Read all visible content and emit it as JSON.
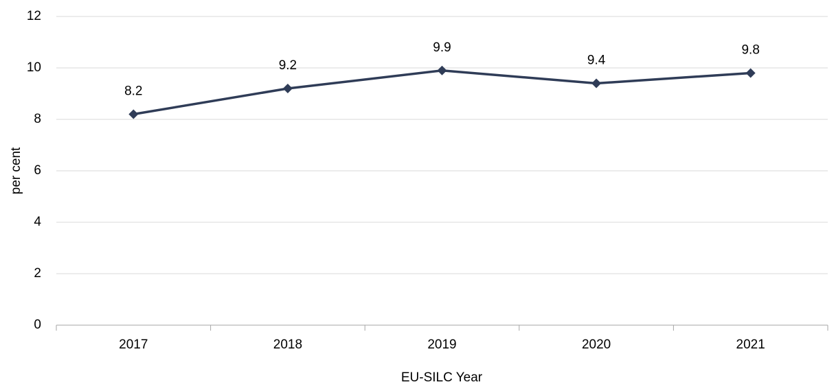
{
  "chart_data": {
    "type": "line",
    "categories": [
      "2017",
      "2018",
      "2019",
      "2020",
      "2021"
    ],
    "series": [
      {
        "name": "per cent",
        "color": "#2f3c57",
        "values": [
          8.2,
          9.2,
          9.9,
          9.4,
          9.8
        ]
      }
    ],
    "ylim": [
      0,
      12
    ],
    "yticks": [
      0,
      2,
      4,
      6,
      8,
      10,
      12
    ],
    "grid": true,
    "y_label": "per cent",
    "x_label": "EU-SILC Year"
  }
}
